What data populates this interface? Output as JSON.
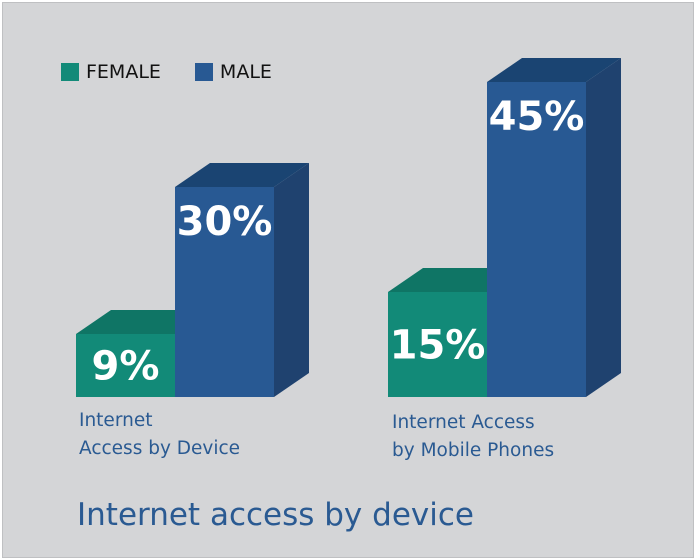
{
  "chart_data": {
    "type": "bar",
    "title": "Internet access by device",
    "categories": [
      "Internet\nAccess by Device",
      "Internet Access\nby Mobile Phones"
    ],
    "series": [
      {
        "name": "FEMALE",
        "values": [
          9,
          15
        ],
        "labels": [
          "9%",
          "15%"
        ]
      },
      {
        "name": "MALE",
        "values": [
          30,
          45
        ],
        "labels": [
          "30%",
          "45%"
        ]
      }
    ],
    "ylim": [
      0,
      45
    ],
    "legend_position": "top-left",
    "style": "3d",
    "colors": {
      "FEMALE": {
        "front": "#128a78",
        "top": "#0f7565",
        "side": "#0c6657"
      },
      "MALE": {
        "front": "#285993",
        "top": "#1a4472",
        "side": "#1f426f"
      }
    }
  }
}
